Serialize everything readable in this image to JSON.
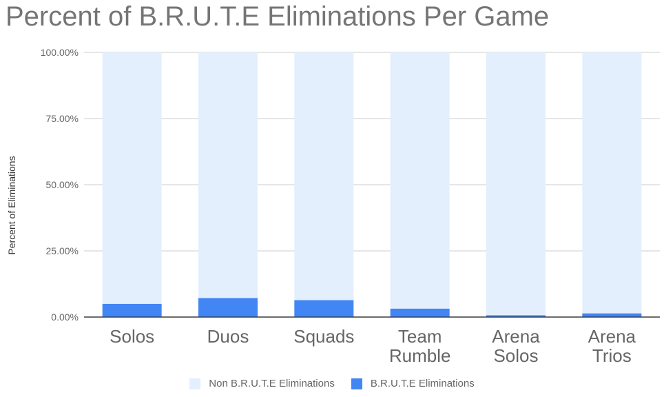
{
  "chart_data": {
    "type": "bar",
    "stacked": true,
    "title": "Percent of B.R.U.T.E Eliminations Per Game",
    "ylabel": "Percent of Eliminations",
    "xlabel": "",
    "categories": [
      "Solos",
      "Duos",
      "Squads",
      "Team Rumble",
      "Arena Solos",
      "Arena Trios"
    ],
    "series": [
      {
        "name": "B.R.U.T.E Eliminations",
        "color": "#4285f4",
        "values": [
          5.0,
          7.2,
          6.4,
          3.2,
          0.7,
          1.4
        ]
      },
      {
        "name": "Non B.R.U.T.E Eliminations",
        "color": "#e3effd",
        "values": [
          95.0,
          92.8,
          93.6,
          96.8,
          99.3,
          98.6
        ]
      }
    ],
    "ylim": [
      0,
      100
    ],
    "yticks": [
      "0.00%",
      "25.00%",
      "50.00%",
      "75.00%",
      "100.00%"
    ],
    "ytick_values": [
      0,
      25,
      50,
      75,
      100
    ],
    "grid": true,
    "legend_position": "bottom",
    "legend_order": [
      "Non B.R.U.T.E Eliminations",
      "B.R.U.T.E Eliminations"
    ]
  }
}
